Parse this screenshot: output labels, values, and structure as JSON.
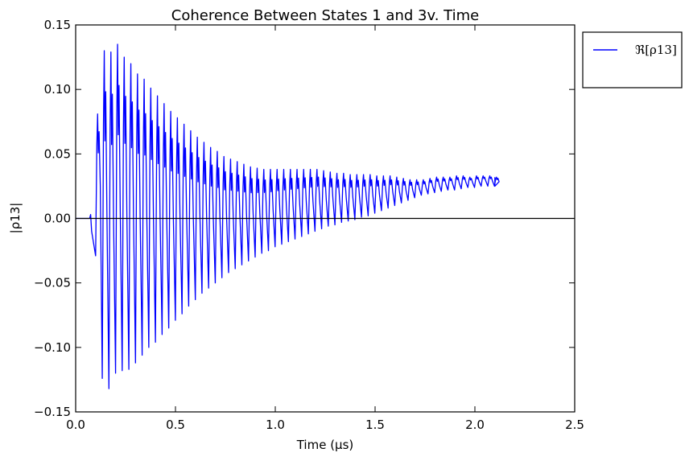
{
  "chart_data": {
    "type": "line",
    "title": "Coherence Between States 1 and 3v. Time",
    "xlabel": "Time (μs)",
    "ylabel": "|ρ13|",
    "xlim": [
      0.0,
      2.5
    ],
    "ylim": [
      -0.15,
      0.15
    ],
    "x_ticks": [
      "0.0",
      "0.5",
      "1.0",
      "1.5",
      "2.0",
      "2.5"
    ],
    "y_ticks": [
      "0.15",
      "0.10",
      "0.05",
      "0.00",
      "−0.05",
      "−0.10",
      "−0.15"
    ],
    "x_tick_values": [
      0.0,
      0.5,
      1.0,
      1.5,
      2.0,
      2.5
    ],
    "y_tick_values": [
      0.15,
      0.1,
      0.05,
      0.0,
      -0.05,
      -0.1,
      -0.15
    ],
    "grid": false,
    "legend_position": "outside-top-right",
    "reference_line": {
      "y": 0.0,
      "color": "#000000"
    },
    "series": [
      {
        "name": "ℜ[ρ13]",
        "color": "#0000ff",
        "x_start": 0.1,
        "x_end": 2.1,
        "period": 0.0333,
        "max_values": [
          0.081,
          0.13,
          0.129,
          0.135,
          0.125,
          0.12,
          0.112,
          0.108,
          0.101,
          0.095,
          0.089,
          0.083,
          0.078,
          0.073,
          0.068,
          0.063,
          0.059,
          0.055,
          0.052,
          0.048,
          0.046,
          0.044,
          0.042,
          0.04,
          0.039,
          0.038,
          0.038,
          0.038,
          0.038,
          0.038,
          0.038,
          0.038,
          0.038,
          0.038,
          0.037,
          0.036,
          0.035,
          0.035,
          0.034,
          0.034,
          0.034,
          0.034,
          0.033,
          0.033,
          0.033,
          0.032,
          0.031,
          0.03,
          0.03,
          0.03,
          0.031,
          0.032,
          0.032,
          0.032,
          0.033,
          0.033,
          0.032,
          0.033,
          0.033,
          0.033,
          0.032
        ],
        "min_values": [
          -0.029,
          -0.124,
          -0.132,
          -0.12,
          -0.118,
          -0.117,
          -0.112,
          -0.106,
          -0.1,
          -0.096,
          -0.09,
          -0.085,
          -0.079,
          -0.074,
          -0.068,
          -0.063,
          -0.058,
          -0.054,
          -0.05,
          -0.046,
          -0.042,
          -0.039,
          -0.036,
          -0.033,
          -0.03,
          -0.027,
          -0.025,
          -0.022,
          -0.02,
          -0.018,
          -0.016,
          -0.014,
          -0.012,
          -0.01,
          -0.008,
          -0.006,
          -0.005,
          -0.003,
          -0.002,
          -0.001,
          0.001,
          0.002,
          0.004,
          0.006,
          0.008,
          0.01,
          0.012,
          0.014,
          0.016,
          0.018,
          0.019,
          0.02,
          0.021,
          0.022,
          0.022,
          0.023,
          0.024,
          0.024,
          0.025,
          0.025,
          0.025
        ]
      }
    ]
  }
}
